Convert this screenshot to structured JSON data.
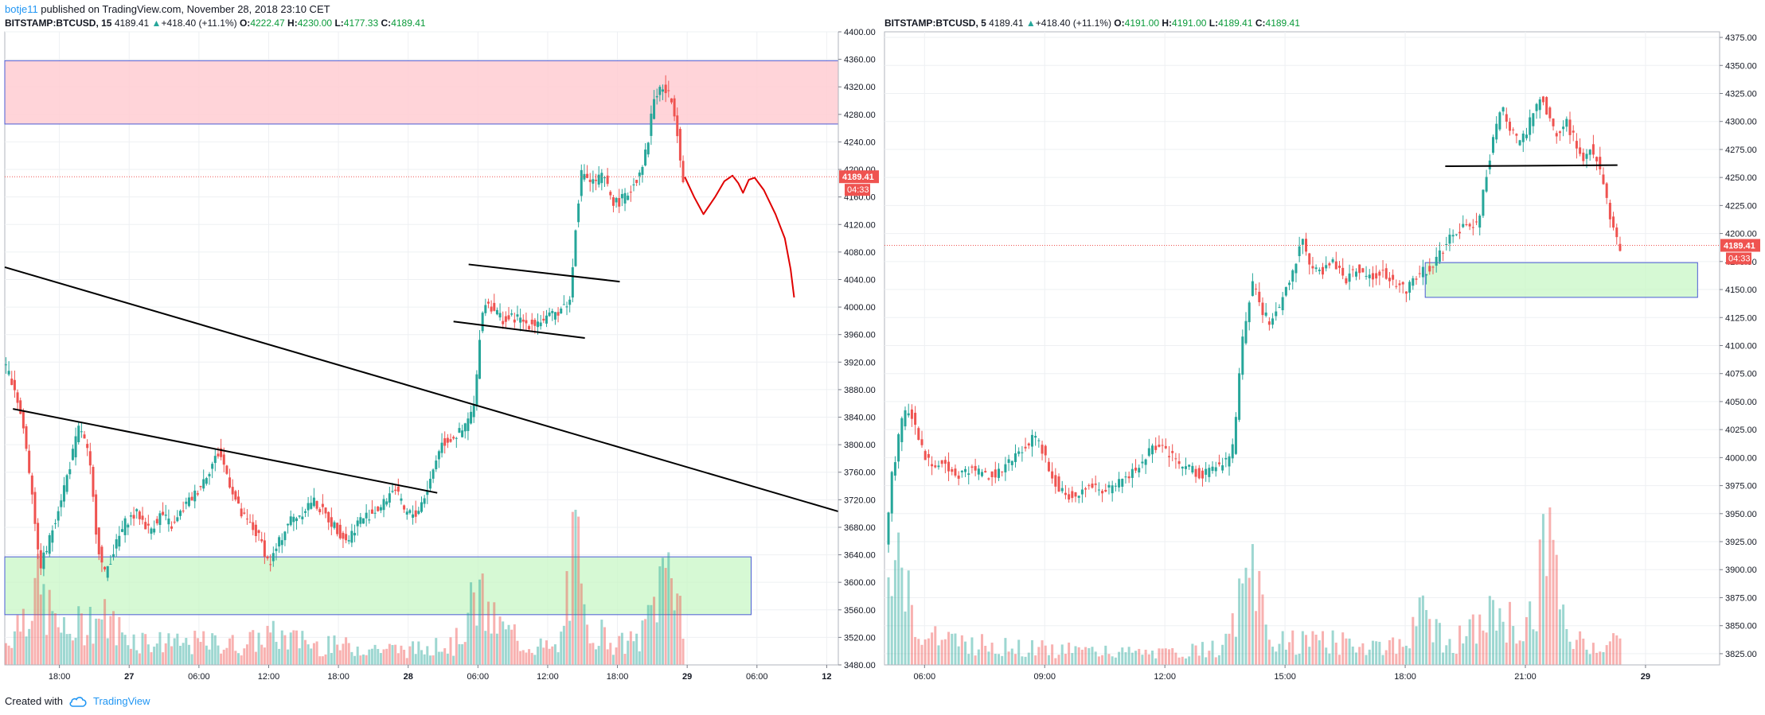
{
  "header": {
    "author": "botje11",
    "published_text": " published on TradingView.com, November 28, 2018 23:10 CET"
  },
  "footer": {
    "created_with": "Created with",
    "brand": "TradingView"
  },
  "colors": {
    "up": "#26a69a",
    "down": "#ef5350",
    "resistance_zone": "#ffcdd2",
    "support_zone": "#c8f7c5",
    "zone_border": "#4a5bd4",
    "last_price": "#ef5350",
    "drawing": "#000000",
    "projection": "#e00000"
  },
  "chart_data": [
    {
      "type": "candlestick",
      "symbol": "BITSTAMP:BTCUSD",
      "interval": "15",
      "legend": {
        "last": "4189.41",
        "change": "+418.40 (+11.1%)",
        "open_label": "O:",
        "open": "4222.47",
        "high_label": "H:",
        "high": "4230.00",
        "low_label": "L:",
        "low": "4177.33",
        "close_label": "C:",
        "close": "4189.41"
      },
      "last_price_label": "4189.41",
      "countdown_label": "04:33",
      "ylim": [
        3480,
        4400
      ],
      "y_ticks": [
        3480,
        3520,
        3560,
        3600,
        3640,
        3680,
        3720,
        3760,
        3800,
        3840,
        3880,
        3920,
        3960,
        4000,
        4040,
        4080,
        4120,
        4160,
        4200,
        4240,
        4280,
        4320,
        4360,
        4400
      ],
      "x_ticks": [
        "18:00",
        "27",
        "06:00",
        "12:00",
        "18:00",
        "28",
        "06:00",
        "12:00",
        "18:00",
        "29",
        "06:00",
        "12"
      ],
      "x_tick_hours": [
        18,
        24,
        30,
        36,
        42,
        48,
        54,
        60,
        66,
        72,
        78,
        84
      ],
      "x_range_hours": [
        13.3,
        85
      ],
      "zones": [
        {
          "name": "resistance",
          "x0": 13.3,
          "x1": 85,
          "y0": 4266,
          "y1": 4358
        },
        {
          "name": "support",
          "x0": 13.3,
          "x1": 77.5,
          "y0": 3553,
          "y1": 3637
        }
      ],
      "lines": [
        {
          "x0": 13.3,
          "y0": 4058,
          "x1": 85,
          "y1": 3703
        },
        {
          "x0": 14.0,
          "y0": 3852,
          "x1": 50.5,
          "y1": 3730
        },
        {
          "x0": 53.2,
          "y0": 4062,
          "x1": 66.2,
          "y1": 4037
        },
        {
          "x0": 51.9,
          "y0": 3979,
          "x1": 63.2,
          "y1": 3955
        }
      ],
      "projection": [
        [
          71.8,
          4189
        ],
        [
          72.6,
          4160
        ],
        [
          73.4,
          4135
        ],
        [
          74.4,
          4160
        ],
        [
          75.2,
          4183
        ],
        [
          75.9,
          4191
        ],
        [
          76.4,
          4180
        ],
        [
          76.8,
          4166
        ],
        [
          77.3,
          4185
        ],
        [
          77.8,
          4188
        ],
        [
          78.6,
          4170
        ],
        [
          79.6,
          4135
        ],
        [
          80.4,
          4100
        ],
        [
          80.9,
          4055
        ],
        [
          81.2,
          4014
        ]
      ],
      "price_path": [
        [
          13.3,
          3920
        ],
        [
          14.3,
          3890
        ],
        [
          15.1,
          3830
        ],
        [
          16.0,
          3720
        ],
        [
          16.5,
          3620
        ],
        [
          17.2,
          3650
        ],
        [
          18.0,
          3700
        ],
        [
          19.0,
          3760
        ],
        [
          20.0,
          3830
        ],
        [
          20.8,
          3780
        ],
        [
          21.5,
          3660
        ],
        [
          22.1,
          3610
        ],
        [
          23.0,
          3650
        ],
        [
          24.0,
          3690
        ],
        [
          25.0,
          3700
        ],
        [
          26.0,
          3675
        ],
        [
          27.0,
          3700
        ],
        [
          28.0,
          3680
        ],
        [
          29.0,
          3710
        ],
        [
          30.0,
          3730
        ],
        [
          31.0,
          3760
        ],
        [
          32.0,
          3790
        ],
        [
          32.8,
          3750
        ],
        [
          33.8,
          3700
        ],
        [
          34.8,
          3680
        ],
        [
          35.6,
          3660
        ],
        [
          36.3,
          3625
        ],
        [
          37.2,
          3660
        ],
        [
          38.0,
          3690
        ],
        [
          39.0,
          3700
        ],
        [
          40.0,
          3720
        ],
        [
          41.0,
          3700
        ],
        [
          42.0,
          3680
        ],
        [
          43.0,
          3660
        ],
        [
          44.0,
          3690
        ],
        [
          45.0,
          3700
        ],
        [
          46.0,
          3710
        ],
        [
          47.0,
          3740
        ],
        [
          48.0,
          3700
        ],
        [
          49.0,
          3700
        ],
        [
          50.0,
          3740
        ],
        [
          51.0,
          3800
        ],
        [
          52.0,
          3810
        ],
        [
          53.0,
          3820
        ],
        [
          54.0,
          3860
        ],
        [
          54.4,
          3960
        ],
        [
          54.8,
          4010
        ],
        [
          55.5,
          4000
        ],
        [
          56.5,
          3980
        ],
        [
          57.5,
          3985
        ],
        [
          58.5,
          3975
        ],
        [
          59.5,
          3980
        ],
        [
          60.5,
          3985
        ],
        [
          61.5,
          4000
        ],
        [
          62.2,
          4010
        ],
        [
          62.7,
          4130
        ],
        [
          63.2,
          4200
        ],
        [
          64.0,
          4180
        ],
        [
          65.0,
          4190
        ],
        [
          66.0,
          4150
        ],
        [
          67.0,
          4160
        ],
        [
          68.0,
          4190
        ],
        [
          68.8,
          4230
        ],
        [
          69.3,
          4300
        ],
        [
          70.0,
          4320
        ],
        [
          70.6,
          4310
        ],
        [
          71.1,
          4290
        ],
        [
          71.5,
          4245
        ],
        [
          71.8,
          4189
        ]
      ],
      "vol_max": 250,
      "volume_anchor": [
        [
          13.3,
          40
        ],
        [
          16.0,
          150
        ],
        [
          17.0,
          110
        ],
        [
          18.5,
          60
        ],
        [
          21.2,
          100
        ],
        [
          22.0,
          90
        ],
        [
          24.0,
          55
        ],
        [
          28.0,
          40
        ],
        [
          30.0,
          45
        ],
        [
          34.0,
          40
        ],
        [
          36.0,
          60
        ],
        [
          40.0,
          40
        ],
        [
          44.0,
          35
        ],
        [
          48.0,
          30
        ],
        [
          52.0,
          40
        ],
        [
          54.0,
          140
        ],
        [
          55.0,
          90
        ],
        [
          58.0,
          40
        ],
        [
          61.0,
          30
        ],
        [
          62.5,
          250
        ],
        [
          63.0,
          90
        ],
        [
          66.0,
          40
        ],
        [
          68.0,
          50
        ],
        [
          69.5,
          150
        ],
        [
          70.7,
          230
        ],
        [
          71.8,
          60
        ]
      ]
    },
    {
      "type": "candlestick",
      "symbol": "BITSTAMP:BTCUSD",
      "interval": "5",
      "legend": {
        "last": "4189.41",
        "change": "+418.40 (+11.1%)",
        "open_label": "O:",
        "open": "4191.00",
        "high_label": "H:",
        "high": "4191.00",
        "low_label": "L:",
        "low": "4189.41",
        "close_label": "C:",
        "close": "4189.41"
      },
      "last_price_label": "4189.41",
      "countdown_label": "04:33",
      "ylim": [
        3815,
        4380
      ],
      "y_ticks": [
        3825,
        3850,
        3875,
        3900,
        3925,
        3950,
        3975,
        4000,
        4025,
        4050,
        4075,
        4100,
        4125,
        4150,
        4175,
        4200,
        4225,
        4250,
        4275,
        4300,
        4325,
        4350,
        4375
      ],
      "x_ticks": [
        "06:00",
        "09:00",
        "12:00",
        "15:00",
        "18:00",
        "21:00",
        "29"
      ],
      "x_tick_hours": [
        6,
        9,
        12,
        15,
        18,
        21,
        24
      ],
      "x_range_hours": [
        5.0,
        25.85
      ],
      "zones": [
        {
          "name": "support",
          "x0": 18.5,
          "x1": 25.3,
          "y0": 4143,
          "y1": 4174
        }
      ],
      "lines": [
        {
          "x0": 19.0,
          "y0": 4260,
          "x1": 23.3,
          "y1": 4261
        }
      ],
      "projection": [],
      "price_path": [
        [
          5.0,
          3880
        ],
        [
          5.25,
          3980
        ],
        [
          5.5,
          4030
        ],
        [
          5.7,
          4045
        ],
        [
          5.9,
          4020
        ],
        [
          6.1,
          4000
        ],
        [
          6.4,
          3995
        ],
        [
          6.7,
          3990
        ],
        [
          7.0,
          3985
        ],
        [
          7.3,
          3990
        ],
        [
          7.6,
          3985
        ],
        [
          7.9,
          3985
        ],
        [
          8.2,
          3995
        ],
        [
          8.5,
          4005
        ],
        [
          8.8,
          4020
        ],
        [
          9.0,
          4010
        ],
        [
          9.2,
          3990
        ],
        [
          9.4,
          3975
        ],
        [
          9.7,
          3965
        ],
        [
          10.0,
          3970
        ],
        [
          10.3,
          3975
        ],
        [
          10.6,
          3970
        ],
        [
          10.9,
          3975
        ],
        [
          11.2,
          3985
        ],
        [
          11.5,
          3995
        ],
        [
          11.8,
          4010
        ],
        [
          12.1,
          4005
        ],
        [
          12.4,
          3995
        ],
        [
          12.7,
          3990
        ],
        [
          13.0,
          3985
        ],
        [
          13.3,
          3990
        ],
        [
          13.6,
          3995
        ],
        [
          13.8,
          4010
        ],
        [
          14.0,
          4100
        ],
        [
          14.15,
          4135
        ],
        [
          14.3,
          4160
        ],
        [
          14.5,
          4130
        ],
        [
          14.7,
          4120
        ],
        [
          15.0,
          4140
        ],
        [
          15.3,
          4170
        ],
        [
          15.5,
          4195
        ],
        [
          15.7,
          4175
        ],
        [
          16.0,
          4165
        ],
        [
          16.3,
          4175
        ],
        [
          16.6,
          4160
        ],
        [
          16.9,
          4170
        ],
        [
          17.2,
          4160
        ],
        [
          17.5,
          4165
        ],
        [
          17.8,
          4155
        ],
        [
          18.1,
          4150
        ],
        [
          18.4,
          4165
        ],
        [
          18.7,
          4170
        ],
        [
          19.0,
          4185
        ],
        [
          19.3,
          4200
        ],
        [
          19.6,
          4205
        ],
        [
          19.9,
          4210
        ],
        [
          20.1,
          4250
        ],
        [
          20.3,
          4290
        ],
        [
          20.5,
          4310
        ],
        [
          20.7,
          4295
        ],
        [
          20.9,
          4280
        ],
        [
          21.1,
          4290
        ],
        [
          21.3,
          4310
        ],
        [
          21.5,
          4320
        ],
        [
          21.7,
          4300
        ],
        [
          21.9,
          4285
        ],
        [
          22.1,
          4300
        ],
        [
          22.3,
          4285
        ],
        [
          22.5,
          4265
        ],
        [
          22.7,
          4280
        ],
        [
          22.9,
          4260
        ],
        [
          23.1,
          4230
        ],
        [
          23.25,
          4210
        ],
        [
          23.4,
          4189
        ]
      ],
      "vol_max": 140,
      "volume_anchor": [
        [
          5.0,
          80
        ],
        [
          5.3,
          100
        ],
        [
          5.6,
          70
        ],
        [
          6.0,
          30
        ],
        [
          8.0,
          20
        ],
        [
          10.0,
          15
        ],
        [
          12.0,
          12
        ],
        [
          13.5,
          20
        ],
        [
          14.0,
          80
        ],
        [
          14.3,
          95
        ],
        [
          14.6,
          25
        ],
        [
          16.0,
          25
        ],
        [
          18.0,
          20
        ],
        [
          18.5,
          60
        ],
        [
          19.0,
          20
        ],
        [
          20.0,
          45
        ],
        [
          20.3,
          60
        ],
        [
          21.0,
          30
        ],
        [
          21.6,
          140
        ],
        [
          22.0,
          30
        ],
        [
          23.0,
          20
        ],
        [
          23.4,
          30
        ]
      ]
    }
  ]
}
